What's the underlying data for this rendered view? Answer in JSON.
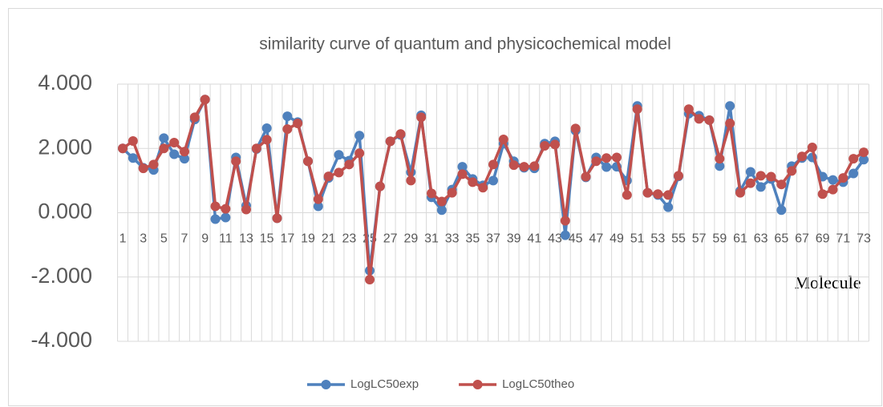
{
  "chart_data": {
    "type": "line",
    "title": "similarity curve of quantum and physicochemical model",
    "x_label": "Molecule",
    "categories": [
      1,
      null,
      3,
      null,
      5,
      null,
      7,
      null,
      9,
      null,
      11,
      null,
      13,
      null,
      15,
      null,
      17,
      null,
      19,
      null,
      21,
      null,
      23,
      null,
      25,
      null,
      27,
      null,
      29,
      null,
      31,
      null,
      33,
      null,
      35,
      null,
      37,
      null,
      39,
      null,
      41,
      null,
      43,
      null,
      45,
      null,
      47,
      null,
      49,
      null,
      51,
      null,
      53,
      null,
      55,
      null,
      57,
      null,
      59,
      null,
      61,
      null,
      63,
      null,
      65,
      null,
      67,
      null,
      69,
      null,
      71,
      null,
      73
    ],
    "series": [
      {
        "name": "LogLC50exp",
        "color": "#4f81bd",
        "values": [
          2.0,
          1.7,
          1.4,
          1.33,
          2.32,
          1.82,
          1.68,
          2.9,
          3.52,
          -0.2,
          -0.15,
          1.72,
          0.22,
          1.98,
          2.63,
          -0.17,
          3.0,
          2.82,
          1.6,
          0.2,
          1.08,
          1.8,
          1.62,
          2.4,
          -1.8,
          0.82,
          2.22,
          2.42,
          1.26,
          3.03,
          0.48,
          0.08,
          0.72,
          1.43,
          1.05,
          0.85,
          1.0,
          2.15,
          1.6,
          1.4,
          1.38,
          2.15,
          2.22,
          -0.7,
          2.55,
          1.1,
          1.72,
          1.42,
          1.43,
          1.0,
          3.32,
          0.62,
          0.55,
          0.17,
          1.13,
          3.08,
          3.02,
          2.88,
          1.45,
          3.32,
          0.68,
          1.27,
          0.8,
          1.05,
          0.08,
          1.45,
          1.7,
          1.72,
          1.12,
          1.02,
          0.95,
          1.22,
          1.65
        ]
      },
      {
        "name": "LogLC50theo",
        "color": "#c0504d",
        "values": [
          2.0,
          2.23,
          1.38,
          1.5,
          2.0,
          2.18,
          1.9,
          2.97,
          3.52,
          0.2,
          0.12,
          1.6,
          0.1,
          2.0,
          2.27,
          -0.17,
          2.6,
          2.78,
          1.6,
          0.42,
          1.13,
          1.25,
          1.5,
          1.85,
          -2.08,
          0.82,
          2.22,
          2.45,
          1.0,
          2.97,
          0.6,
          0.35,
          0.62,
          1.2,
          0.95,
          0.78,
          1.5,
          2.28,
          1.48,
          1.43,
          1.45,
          2.08,
          2.12,
          -0.25,
          2.62,
          1.12,
          1.6,
          1.7,
          1.72,
          0.55,
          3.22,
          0.62,
          0.58,
          0.55,
          1.15,
          3.22,
          2.92,
          2.88,
          1.68,
          2.78,
          0.62,
          0.92,
          1.15,
          1.12,
          0.88,
          1.3,
          1.75,
          2.03,
          0.58,
          0.72,
          1.08,
          1.68,
          1.88
        ]
      }
    ],
    "ylim": [
      -4,
      4
    ],
    "yticks": [
      {
        "value": -4,
        "label": "-4.000"
      },
      {
        "value": -2,
        "label": "-2.000"
      },
      {
        "value": 0,
        "label": "0.000"
      },
      {
        "value": 2,
        "label": "2.000"
      },
      {
        "value": 4,
        "label": "4.000"
      }
    ],
    "grid": true,
    "legend": "bottom"
  }
}
